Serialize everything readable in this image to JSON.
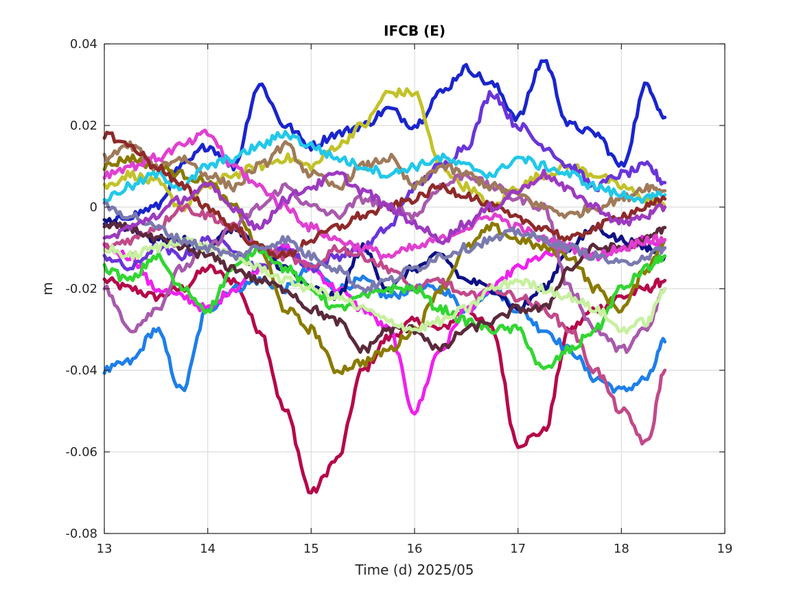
{
  "chart_data": {
    "type": "line",
    "title": "IFCB (E)",
    "xlabel": "Time (d)  2025/05",
    "ylabel": "m",
    "xlim": [
      13,
      19
    ],
    "ylim": [
      -0.08,
      0.04
    ],
    "xticks": [
      13,
      14,
      15,
      16,
      17,
      18,
      19
    ],
    "yticks": [
      -0.08,
      -0.06,
      -0.04,
      -0.02,
      0,
      0.02,
      0.04
    ],
    "xtick_labels": [
      "13",
      "14",
      "15",
      "16",
      "17",
      "18",
      "19"
    ],
    "ytick_labels": [
      "-0.08",
      "-0.06",
      "-0.04",
      "-0.02",
      "0",
      "0.02",
      "0.04"
    ],
    "grid": true,
    "x": [
      13.0,
      13.25,
      13.5,
      13.75,
      14.0,
      14.25,
      14.5,
      14.75,
      15.0,
      15.25,
      15.5,
      15.75,
      16.0,
      16.25,
      16.5,
      16.75,
      17.0,
      17.25,
      17.5,
      17.75,
      18.0,
      18.25,
      18.42
    ],
    "series": [
      {
        "color": "#b5084a",
        "values": [
          -0.018,
          -0.02,
          -0.022,
          -0.02,
          -0.015,
          -0.018,
          -0.03,
          -0.05,
          -0.07,
          -0.062,
          -0.04,
          -0.032,
          -0.028,
          -0.03,
          -0.025,
          -0.03,
          -0.058,
          -0.055,
          -0.03,
          -0.025,
          -0.022,
          -0.02,
          -0.018
        ]
      },
      {
        "color": "#1e7fe8",
        "values": [
          -0.04,
          -0.038,
          -0.03,
          -0.045,
          -0.025,
          -0.02,
          -0.018,
          -0.02,
          -0.015,
          -0.02,
          -0.018,
          -0.022,
          -0.02,
          -0.02,
          -0.025,
          -0.02,
          -0.025,
          -0.03,
          -0.035,
          -0.042,
          -0.045,
          -0.042,
          -0.033
        ]
      },
      {
        "color": "#ee22ee",
        "values": [
          -0.01,
          -0.012,
          -0.02,
          -0.022,
          -0.025,
          -0.02,
          -0.015,
          -0.01,
          -0.015,
          -0.02,
          -0.025,
          -0.03,
          -0.05,
          -0.035,
          -0.025,
          -0.02,
          -0.015,
          -0.012,
          -0.01,
          -0.012,
          -0.01,
          -0.008,
          -0.01
        ]
      },
      {
        "color": "#1a25cc",
        "values": [
          -0.005,
          -0.002,
          0.0,
          0.01,
          0.015,
          0.01,
          0.03,
          0.02,
          0.015,
          0.018,
          0.02,
          0.024,
          0.02,
          0.028,
          0.034,
          0.03,
          0.022,
          0.036,
          0.02,
          0.018,
          0.01,
          0.03,
          0.022
        ]
      },
      {
        "color": "#c2c22a",
        "values": [
          0.005,
          0.008,
          0.006,
          0.0,
          0.005,
          0.008,
          0.01,
          0.012,
          0.01,
          0.015,
          0.02,
          0.028,
          0.028,
          0.01,
          0.005,
          0.0,
          0.005,
          0.008,
          0.01,
          0.008,
          0.005,
          0.002,
          0.0
        ]
      },
      {
        "color": "#6a35d8",
        "values": [
          -0.012,
          -0.015,
          -0.01,
          -0.012,
          -0.008,
          -0.01,
          -0.015,
          -0.01,
          -0.015,
          -0.012,
          -0.01,
          -0.005,
          0.005,
          0.01,
          0.015,
          0.028,
          0.02,
          0.015,
          0.01,
          0.005,
          0.008,
          0.01,
          0.006
        ]
      },
      {
        "color": "#0e1185",
        "values": [
          -0.003,
          -0.005,
          -0.008,
          -0.008,
          -0.01,
          -0.005,
          -0.01,
          -0.015,
          -0.02,
          -0.022,
          -0.01,
          -0.02,
          -0.015,
          -0.012,
          -0.018,
          -0.02,
          -0.025,
          -0.02,
          -0.01,
          -0.005,
          -0.008,
          -0.01,
          -0.012
        ]
      },
      {
        "color": "#8a7a00",
        "values": [
          0.01,
          0.012,
          0.01,
          0.008,
          0.006,
          0.0,
          -0.01,
          -0.025,
          -0.03,
          -0.04,
          -0.038,
          -0.035,
          -0.03,
          -0.02,
          -0.01,
          -0.005,
          -0.008,
          -0.01,
          -0.012,
          -0.02,
          -0.025,
          -0.015,
          -0.008
        ]
      },
      {
        "color": "#a85aac",
        "values": [
          -0.02,
          -0.03,
          -0.025,
          -0.015,
          -0.01,
          -0.005,
          0.0,
          0.005,
          0.0,
          -0.002,
          0.002,
          0.0,
          -0.002,
          0.005,
          0.008,
          0.005,
          0.002,
          0.0,
          -0.02,
          -0.03,
          -0.035,
          -0.03,
          -0.02
        ]
      },
      {
        "color": "#c14a8a",
        "values": [
          -0.01,
          -0.008,
          -0.005,
          0.0,
          -0.002,
          -0.005,
          -0.01,
          -0.012,
          -0.015,
          -0.01,
          -0.012,
          -0.015,
          -0.02,
          -0.018,
          -0.022,
          -0.02,
          -0.022,
          -0.025,
          -0.03,
          -0.04,
          -0.05,
          -0.058,
          -0.04
        ]
      },
      {
        "color": "#32d632",
        "values": [
          -0.015,
          -0.018,
          -0.012,
          -0.02,
          -0.025,
          -0.015,
          -0.01,
          -0.015,
          -0.02,
          -0.025,
          -0.022,
          -0.02,
          -0.02,
          -0.025,
          -0.028,
          -0.03,
          -0.03,
          -0.04,
          -0.035,
          -0.03,
          -0.02,
          -0.015,
          -0.012
        ]
      },
      {
        "color": "#5a2a3a",
        "values": [
          -0.005,
          -0.005,
          -0.008,
          -0.01,
          -0.012,
          -0.015,
          -0.018,
          -0.02,
          -0.025,
          -0.028,
          -0.035,
          -0.03,
          -0.03,
          -0.035,
          -0.03,
          -0.028,
          -0.025,
          -0.025,
          -0.015,
          -0.01,
          -0.01,
          -0.008,
          -0.005
        ]
      },
      {
        "color": "#a07a5a",
        "values": [
          0.012,
          0.015,
          0.01,
          0.012,
          0.008,
          0.005,
          0.01,
          0.015,
          0.008,
          0.005,
          0.01,
          0.012,
          0.005,
          0.01,
          0.008,
          0.005,
          0.003,
          0.0,
          -0.002,
          0.0,
          0.002,
          0.005,
          0.004
        ]
      },
      {
        "color": "#e040d0",
        "values": [
          0.008,
          0.01,
          0.012,
          0.015,
          0.018,
          0.01,
          0.005,
          0.0,
          -0.005,
          -0.008,
          -0.01,
          -0.012,
          -0.01,
          -0.008,
          -0.005,
          -0.002,
          -0.005,
          -0.008,
          -0.01,
          -0.012,
          -0.01,
          -0.008,
          -0.008
        ]
      },
      {
        "color": "#22c8e8",
        "values": [
          0.002,
          0.005,
          0.008,
          0.005,
          0.01,
          0.012,
          0.015,
          0.018,
          0.015,
          0.012,
          0.01,
          0.008,
          0.01,
          0.012,
          0.01,
          0.008,
          0.012,
          0.01,
          0.008,
          0.005,
          0.003,
          0.002,
          0.003
        ]
      },
      {
        "color": "#8e2a2a",
        "values": [
          0.018,
          0.015,
          0.01,
          0.005,
          0.0,
          -0.005,
          -0.01,
          -0.012,
          -0.008,
          -0.005,
          -0.002,
          0.0,
          0.002,
          0.005,
          0.003,
          0.0,
          -0.003,
          -0.005,
          -0.008,
          -0.005,
          -0.002,
          0.0,
          0.002
        ]
      },
      {
        "color": "#c8f0a0",
        "values": [
          -0.01,
          -0.012,
          -0.01,
          -0.008,
          -0.01,
          -0.012,
          -0.015,
          -0.018,
          -0.02,
          -0.022,
          -0.025,
          -0.028,
          -0.03,
          -0.028,
          -0.025,
          -0.02,
          -0.018,
          -0.02,
          -0.022,
          -0.025,
          -0.03,
          -0.028,
          -0.02
        ]
      },
      {
        "color": "#7a7ab0",
        "values": [
          0.0,
          -0.002,
          -0.005,
          -0.008,
          -0.01,
          -0.012,
          -0.01,
          -0.008,
          -0.012,
          -0.015,
          -0.02,
          -0.018,
          -0.015,
          -0.012,
          -0.01,
          -0.008,
          -0.006,
          -0.008,
          -0.01,
          -0.012,
          -0.014,
          -0.012,
          -0.01
        ]
      },
      {
        "color": "#9c3ac0",
        "values": [
          -0.008,
          -0.005,
          -0.002,
          0.002,
          0.005,
          0.0,
          -0.005,
          0.002,
          0.005,
          0.008,
          0.004,
          0.0,
          -0.004,
          -0.008,
          -0.004,
          0.0,
          0.004,
          0.008,
          0.004,
          0.0,
          -0.004,
          -0.002,
          0.0
        ]
      }
    ]
  }
}
